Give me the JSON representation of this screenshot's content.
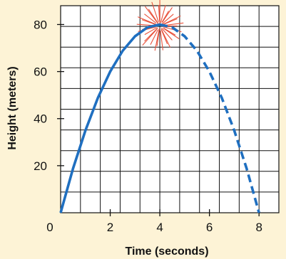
{
  "chart_data": {
    "type": "line",
    "title": "",
    "xlabel": "Time (seconds)",
    "ylabel": "Height (meters)",
    "xlim": [
      0,
      8.8
    ],
    "ylim": [
      0,
      88
    ],
    "grid": true,
    "grid_step": {
      "x": 0.8,
      "y": 8.8
    },
    "xticks": [
      0,
      2,
      4,
      6,
      8
    ],
    "yticks": [
      20,
      40,
      60,
      80
    ],
    "colors": {
      "background": "#fdf3d6",
      "plot": "#ffffff",
      "grid": "#111111",
      "series": "#1f6fc0",
      "firework": "#e8513a"
    },
    "series": [
      {
        "style": "solid",
        "x": [
          0,
          0.5,
          1,
          1.5,
          2,
          2.5,
          3,
          3.5,
          4
        ],
        "y": [
          0,
          18.8,
          35,
          48.8,
          60,
          68.8,
          75,
          78.8,
          80
        ]
      },
      {
        "style": "dashed",
        "x": [
          4,
          4.5,
          5,
          5.5,
          6,
          6.5,
          7,
          7.5,
          8
        ],
        "y": [
          80,
          78.8,
          75,
          68.8,
          60,
          48.8,
          35,
          18.8,
          0
        ]
      }
    ],
    "annotations": [
      {
        "type": "firework-burst-icon",
        "x": 4,
        "y": 80
      }
    ]
  }
}
